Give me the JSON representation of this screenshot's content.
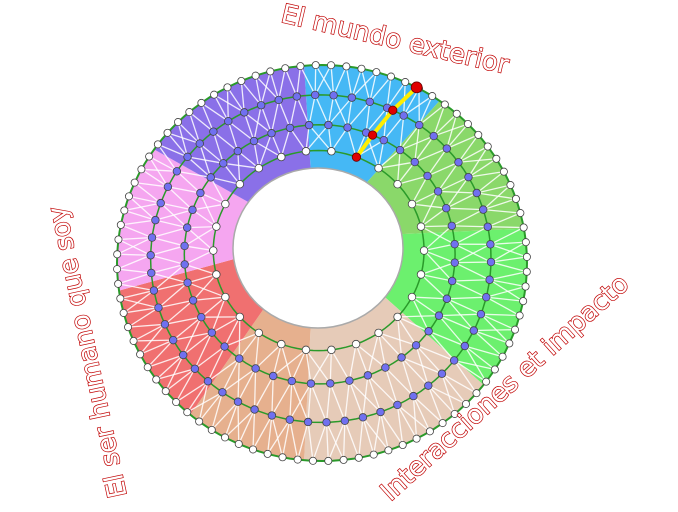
{
  "labels": {
    "top": "El mundo exterior",
    "right": "Interacciones et impacto",
    "left": "El ser humano que soy"
  },
  "colors": {
    "sectors": [
      "#45b8f5",
      "#8ad86a",
      "#6cf06e",
      "#e6cbb8",
      "#e6b08e",
      "#f07070",
      "#f5a6f0",
      "#8a70e8"
    ],
    "ring_line": "#2a9a2a",
    "inner_dot": "#7070f0",
    "path": "#ffee00",
    "path_dot": "#e00000",
    "label_stroke": "#c00000"
  }
}
